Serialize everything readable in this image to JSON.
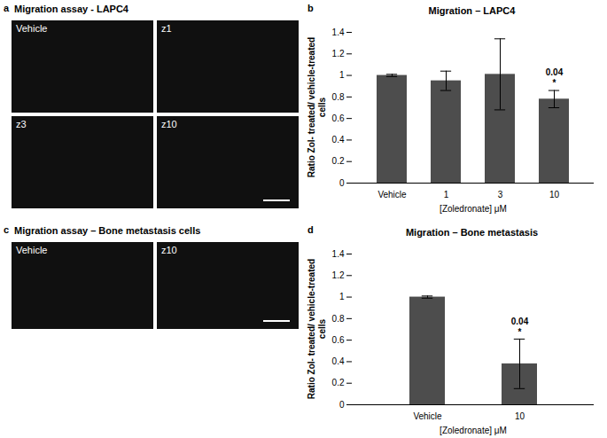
{
  "image_panels": [
    {
      "panel_label": "a",
      "title": "Migration assay - LAPC4",
      "images": [
        "Vehicle",
        "z1",
        "z3",
        "z10"
      ]
    },
    {
      "panel_label": "c",
      "title": "Migration assay – Bone metastasis cells",
      "images": [
        "Vehicle",
        "z10"
      ]
    }
  ],
  "chart_data": [
    {
      "type": "bar",
      "panel_label": "b",
      "title": "Migration – LAPC4",
      "categories": [
        "Vehicle",
        "1",
        "3",
        "10"
      ],
      "values": [
        1.0,
        0.95,
        1.01,
        0.78
      ],
      "errors": [
        0.01,
        0.09,
        0.33,
        0.08
      ],
      "color": "#4d4d4d",
      "x_label": "[Zoledronate] μM",
      "y_label": "Ratio Zol- treated/ vehicle-treated cells",
      "ylim": [
        0,
        1.4
      ],
      "yticks": [
        0,
        0.2,
        0.4,
        0.6,
        0.8,
        1,
        1.2,
        1.4
      ],
      "grid": false,
      "annotations": [
        {
          "category": "10",
          "text": "0.04"
        },
        {
          "category": "10",
          "text": "*"
        }
      ]
    },
    {
      "type": "bar",
      "panel_label": "d",
      "title": "Migration – Bone metastasis",
      "categories": [
        "Vehicle",
        "10"
      ],
      "values": [
        1.0,
        0.38
      ],
      "errors": [
        0.01,
        0.23
      ],
      "color": "#4d4d4d",
      "x_label": "[Zoledronate] μM",
      "y_label": "Ratio Zol- treated/ vehicle-treated cells",
      "ylim": [
        0,
        1.4
      ],
      "yticks": [
        0,
        0.2,
        0.4,
        0.6,
        0.8,
        1,
        1.2,
        1.4
      ],
      "grid": false,
      "annotations": [
        {
          "category": "10",
          "text": "0.04"
        },
        {
          "category": "10",
          "text": "*"
        }
      ]
    }
  ]
}
